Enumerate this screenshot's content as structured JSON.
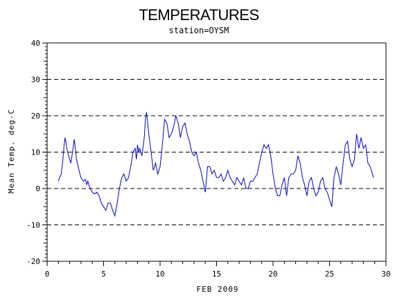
{
  "chart_data": {
    "type": "line",
    "title": "TEMPERATURES",
    "subtitle": "station=OYSM",
    "xlabel": "FEB 2009",
    "ylabel": "Mean Temp. deg-C",
    "xlim": [
      0,
      30
    ],
    "ylim": [
      -20,
      40
    ],
    "x_ticks": [
      0,
      5,
      10,
      15,
      20,
      25,
      30
    ],
    "y_ticks": [
      -20,
      -10,
      0,
      10,
      20,
      30,
      40
    ],
    "x_tick_labels": [
      "0",
      "5",
      "10",
      "15",
      "20",
      "25",
      "30"
    ],
    "y_tick_labels": [
      "-20",
      "-10",
      "0",
      "10",
      "20",
      "30",
      "40"
    ],
    "dashed_gridlines_y": [
      -20,
      -10,
      0,
      10,
      20,
      30,
      40
    ],
    "line_color": "#0000cc",
    "series": [
      {
        "x": [
          1.0,
          1.1,
          1.25,
          1.4,
          1.5,
          1.6,
          1.75,
          1.9,
          2.0,
          2.1,
          2.25,
          2.4,
          2.5,
          2.6,
          2.75,
          2.9,
          3.0,
          3.2,
          3.4,
          3.5,
          3.6,
          3.8,
          4.0,
          4.2,
          4.4,
          4.6,
          4.8,
          5.0,
          5.2,
          5.4,
          5.6,
          5.8,
          6.0,
          6.2,
          6.4,
          6.6,
          6.8,
          7.0,
          7.2,
          7.4,
          7.6,
          7.8,
          7.9,
          8.0,
          8.1,
          8.2,
          8.4,
          8.6,
          8.7,
          8.8,
          9.0,
          9.2,
          9.4,
          9.6,
          9.8,
          10.0,
          10.2,
          10.4,
          10.6,
          10.8,
          11.0,
          11.2,
          11.4,
          11.6,
          11.8,
          12.0,
          12.2,
          12.4,
          12.6,
          12.8,
          13.0,
          13.2,
          13.4,
          13.6,
          13.8,
          14.0,
          14.2,
          14.4,
          14.6,
          14.8,
          15.0,
          15.2,
          15.4,
          15.6,
          15.8,
          16.0,
          16.2,
          16.4,
          16.6,
          16.8,
          17.0,
          17.2,
          17.4,
          17.6,
          17.8,
          18.0,
          18.2,
          18.4,
          18.6,
          18.8,
          19.0,
          19.2,
          19.4,
          19.6,
          19.8,
          20.0,
          20.2,
          20.4,
          20.6,
          20.8,
          21.0,
          21.2,
          21.4,
          21.6,
          21.8,
          22.0,
          22.2,
          22.4,
          22.6,
          22.8,
          23.0,
          23.2,
          23.4,
          23.6,
          23.8,
          24.0,
          24.2,
          24.4,
          24.6,
          24.8,
          25.0,
          25.2,
          25.4,
          25.6,
          25.8,
          26.0,
          26.2,
          26.4,
          26.6,
          26.8,
          27.0,
          27.2,
          27.4,
          27.6,
          27.8,
          28.0,
          28.2,
          28.4,
          28.6,
          28.8,
          28.9
        ],
        "y": [
          2,
          3,
          4,
          8,
          12,
          14,
          11,
          9,
          8,
          7,
          10,
          13.5,
          11,
          8,
          6,
          4,
          3,
          2,
          2.5,
          1,
          2,
          0,
          -1,
          -1.5,
          -1,
          -2,
          -4,
          -5,
          -6,
          -4,
          -4,
          -6,
          -7.5,
          -4,
          0,
          3,
          4,
          2,
          3,
          6,
          10,
          11,
          8,
          12,
          10,
          11,
          9,
          14,
          19,
          21,
          15,
          10,
          5,
          7,
          4,
          6,
          12,
          19,
          18,
          14,
          15,
          17,
          20,
          18,
          14,
          17,
          18,
          15,
          13,
          10,
          9,
          10,
          7,
          5,
          2,
          -1,
          6,
          6,
          4,
          5,
          3,
          3,
          4,
          2,
          3,
          5,
          3,
          2,
          1,
          3,
          2,
          1,
          3,
          0,
          0,
          2,
          2,
          3,
          4,
          7,
          10,
          12,
          11,
          12,
          9,
          4,
          0,
          -2,
          -2,
          1,
          3,
          -2,
          3,
          4,
          4,
          5,
          9,
          7,
          3,
          1,
          -2,
          2,
          3,
          0,
          -2,
          -1,
          2,
          3,
          0,
          -1,
          -3,
          -5,
          3,
          6,
          4,
          1,
          7,
          12,
          13,
          8,
          6,
          8,
          15,
          11,
          14,
          11,
          12,
          7,
          6,
          4,
          3
        ]
      }
    ]
  }
}
